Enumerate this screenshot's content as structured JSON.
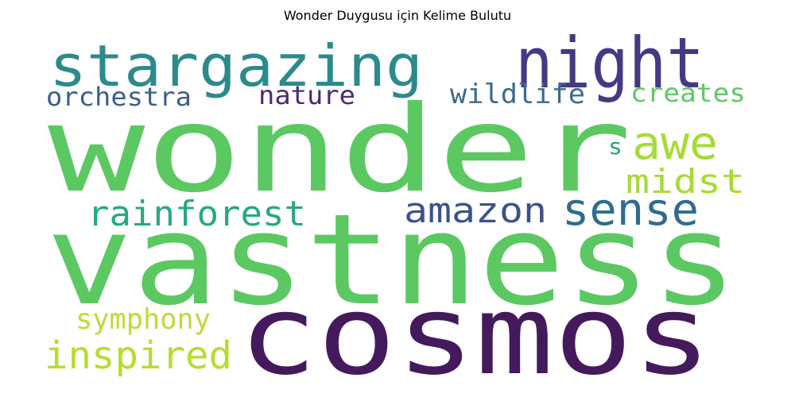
{
  "title": "Wonder Duygusu için Kelime Bulutu",
  "words": [
    {
      "text": "wonder",
      "color": "#5cc862"
    },
    {
      "text": "vastness",
      "color": "#5cc862"
    },
    {
      "text": "cosmos",
      "color": "#441a5c"
    },
    {
      "text": "stargazing",
      "color": "#2c8a8c"
    },
    {
      "text": "night",
      "color": "#443a83"
    },
    {
      "text": "awe",
      "color": "#a5db36"
    },
    {
      "text": "midst",
      "color": "#a5db36"
    },
    {
      "text": "sense",
      "color": "#2f6c8e"
    },
    {
      "text": "amazon",
      "color": "#3b528b"
    },
    {
      "text": "rainforest",
      "color": "#26a884"
    },
    {
      "text": "orchestra",
      "color": "#3b5f8b"
    },
    {
      "text": "nature",
      "color": "#4a2a73"
    },
    {
      "text": "wildlife",
      "color": "#3b6a8b"
    },
    {
      "text": "creates",
      "color": "#5ec962"
    },
    {
      "text": "s",
      "color": "#2aa27e"
    },
    {
      "text": "symphony",
      "color": "#bcdc3a"
    },
    {
      "text": "inspired",
      "color": "#b5de2b"
    }
  ]
}
